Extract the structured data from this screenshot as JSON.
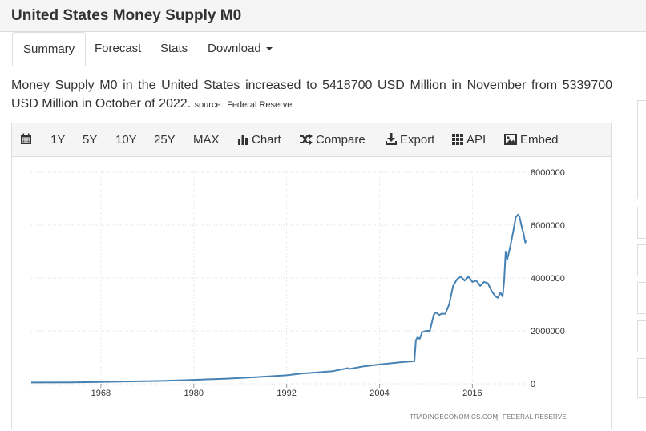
{
  "page": {
    "title": "United States Money Supply M0"
  },
  "tabs": [
    {
      "label": "Summary"
    },
    {
      "label": "Forecast"
    },
    {
      "label": "Stats"
    },
    {
      "label": "Download"
    }
  ],
  "description": {
    "text": "Money Supply M0 in the United States increased to 5418700 USD Million in November from 5339700 USD Million in October of 2022.",
    "source_label": "source:",
    "source_name": "Federal Reserve"
  },
  "toolbar": {
    "calendar_icon": "calendar-icon",
    "ranges": [
      "1Y",
      "5Y",
      "10Y",
      "25Y",
      "MAX"
    ],
    "chart_label": "Chart",
    "compare_label": "Compare",
    "export_label": "Export",
    "api_label": "API",
    "embed_label": "Embed"
  },
  "colors": {
    "line": "#4682b4",
    "grid": "#dddddd",
    "toolbar_bg": "#f5f5f5"
  },
  "chart_data": {
    "type": "line",
    "title": "",
    "xlabel": "",
    "ylabel": "",
    "x_ticks": [
      "1968",
      "1980",
      "1992",
      "2004",
      "2016"
    ],
    "y_ticks": [
      "0",
      "2000000",
      "4000000",
      "6000000",
      "8000000"
    ],
    "xlim": [
      1959,
      2023
    ],
    "ylim": [
      0,
      8000000
    ],
    "y_axis_position": "right",
    "grid": true,
    "credit_left": "TRADINGECONOMICS.COM",
    "credit_right": "FEDERAL RESERVE",
    "series": [
      {
        "x": [
          1959,
          1964,
          1968,
          1972,
          1976,
          1980,
          1984,
          1988,
          1992,
          1994,
          1996,
          1998,
          1999.9,
          2000.1,
          2002,
          2004,
          2006,
          2007,
          2008.5,
          2008.7,
          2008.9,
          2009.2,
          2009.5,
          2010,
          2010.5,
          2011,
          2011.3,
          2011.7,
          2012,
          2012.5,
          2013,
          2013.5,
          2014,
          2014.5,
          2015,
          2015.5,
          2016,
          2016.5,
          2017,
          2017.5,
          2018,
          2018.5,
          2019,
          2019.3,
          2019.6,
          2019.9,
          2020.1,
          2020.3,
          2020.5,
          2020.9,
          2021.3,
          2021.6,
          2021.9,
          2022.1,
          2022.4,
          2022.6,
          2022.83,
          2022.92
        ],
        "y": [
          50000,
          55000,
          70000,
          90000,
          110000,
          150000,
          190000,
          250000,
          320000,
          390000,
          430000,
          480000,
          590000,
          560000,
          660000,
          730000,
          790000,
          820000,
          850000,
          1650000,
          1750000,
          1700000,
          1950000,
          2000000,
          2000000,
          2600000,
          2700000,
          2600000,
          2650000,
          2650000,
          3000000,
          3700000,
          3950000,
          4050000,
          3900000,
          4050000,
          3850000,
          3900000,
          3700000,
          3850000,
          3800000,
          3500000,
          3300000,
          3250000,
          3450000,
          3300000,
          3900000,
          5000000,
          4700000,
          5200000,
          5800000,
          6300000,
          6400000,
          6300000,
          5900000,
          5700000,
          5339700,
          5418700
        ]
      }
    ]
  }
}
